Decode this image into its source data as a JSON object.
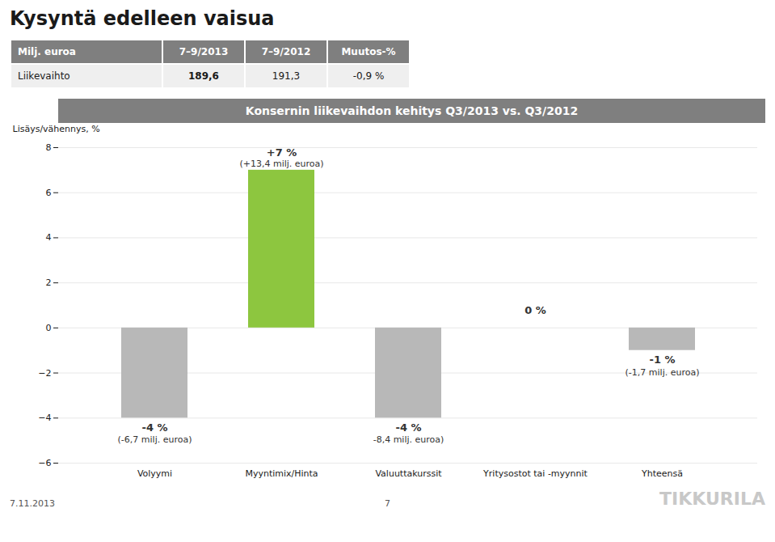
{
  "title": "Kysyntä edelleen vaisua",
  "table": {
    "headers": [
      "Milj. euroa",
      "7–9/2013",
      "7–9/2012",
      "Muutos-%"
    ],
    "rows": [
      [
        "Liikevaihto",
        "189,6",
        "191,3",
        "-0,9 %"
      ]
    ]
  },
  "chart_data": {
    "type": "bar",
    "title": "Konsernin liikevaihdon kehitys Q3/2013 vs. Q3/2012",
    "ylabel": "Lisäys/vähennys, %",
    "categories": [
      "Volyymi",
      "Myyntimix/Hinta",
      "Valuuttakurssit",
      "Yritysostot tai -myynnit",
      "Yhteensä"
    ],
    "values": [
      -4,
      7,
      -4,
      0,
      -1
    ],
    "value_labels": [
      "-4 %",
      "+7 %",
      "-4 %",
      "0 %",
      "-1 %"
    ],
    "data_labels": true,
    "notes": [
      "(-6,7 milj. euroa)",
      "(+13,4 milj. euroa)",
      "-8,4 milj. euroa)",
      null,
      "(-1,7 milj. euroa)"
    ],
    "colors": [
      "#b8b8b8",
      "#8dc63f",
      "#b8b8b8",
      "#b8b8b8",
      "#b8b8b8"
    ],
    "ylim": [
      -6,
      8
    ],
    "yticks": [
      -6,
      -4,
      -2,
      0,
      2,
      4,
      6,
      8
    ],
    "grid": true
  },
  "annotations": [
    "7.11.2013",
    "7",
    "TIKKURILA"
  ]
}
